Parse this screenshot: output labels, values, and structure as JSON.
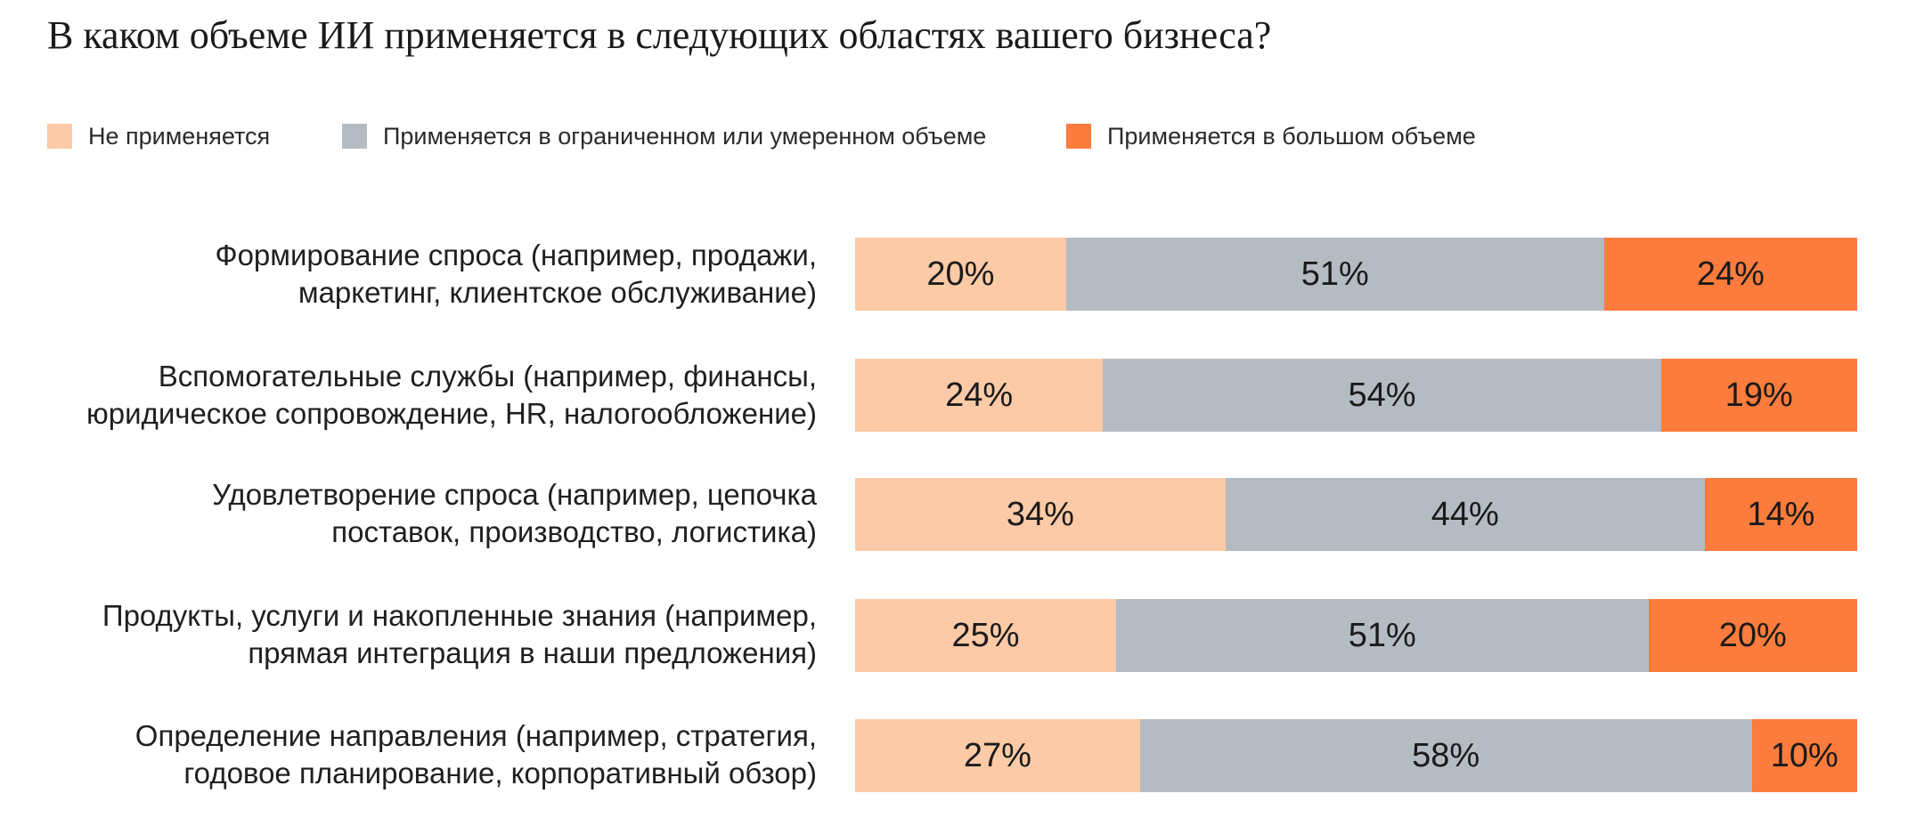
{
  "chart_data": {
    "type": "bar",
    "orientation": "horizontal",
    "stacked": true,
    "title": "В каком объеме ИИ применяется в следующих областях вашего бизнеса?",
    "xlabel": "",
    "ylabel": "",
    "xlim": [
      0,
      100
    ],
    "grid": false,
    "legend_position": "top-left",
    "legend": [
      {
        "label": "Не применяется",
        "color": "#fccaa6"
      },
      {
        "label": "Применяется в ограниченном или умеренном объеме",
        "color": "#b5bbc3"
      },
      {
        "label": "Применяется в большом объеме",
        "color": "#fb7c3c"
      }
    ],
    "categories": [
      {
        "lines": [
          "Формирование спроса (например, продажи,",
          "маркетинг, клиентское обслуживание)"
        ]
      },
      {
        "lines": [
          "Вспомогательные службы (например, финансы,",
          "юридическое сопровождение, HR, налогообложение)"
        ]
      },
      {
        "lines": [
          "Удовлетворение спроса (например, цепочка",
          "поставок, производство, логистика)"
        ]
      },
      {
        "lines": [
          "Продукты, услуги и накопленные знания (например,",
          "прямая интеграция в наши предложения)"
        ]
      },
      {
        "lines": [
          "Определение направления (например, стратегия,",
          "годовое планирование, корпоративный обзор)"
        ]
      }
    ],
    "series": [
      {
        "name": "Не применяется",
        "color": "#fccaa6",
        "values": [
          20,
          24,
          34,
          25,
          27
        ],
        "labels": [
          "20%",
          "24%",
          "34%",
          "25%",
          "27%"
        ]
      },
      {
        "name": "Применяется в ограниченном или умеренном объеме",
        "color": "#b5bbc3",
        "values": [
          51,
          54,
          44,
          51,
          58
        ],
        "labels": [
          "51%",
          "54%",
          "44%",
          "51%",
          "58%"
        ]
      },
      {
        "name": "Применяется в большом объеме",
        "color": "#fb7c3c",
        "values": [
          24,
          19,
          14,
          20,
          10
        ],
        "labels": [
          "24%",
          "19%",
          "14%",
          "20%",
          "10%"
        ]
      }
    ]
  }
}
